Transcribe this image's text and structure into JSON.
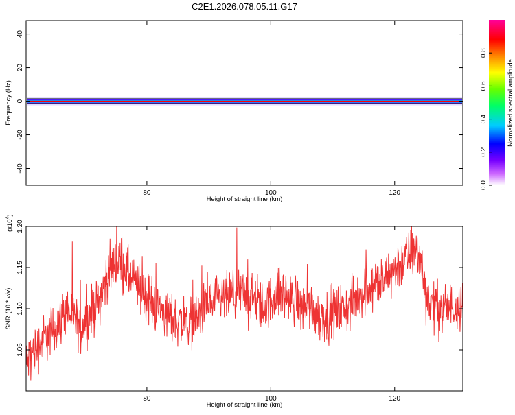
{
  "title": "C2E1.2026.078.05.11.G17",
  "chart_data": [
    {
      "type": "heatmap",
      "xlabel": "Height of straight line (km)",
      "ylabel": "Frequency (Hz)",
      "xlim": [
        60.5,
        131
      ],
      "ylim": [
        -50,
        48
      ],
      "xticks": [
        80,
        100,
        120
      ],
      "yticks": [
        40,
        20,
        0,
        -20,
        -40
      ],
      "ytick_labels": [
        "40",
        "20",
        "0",
        "-20",
        "-40"
      ],
      "band_center_hz": 0,
      "grid": false,
      "colorbar": {
        "label": "Normalized spectral amplitude",
        "range": [
          0,
          1
        ],
        "ticks": [
          0.0,
          0.2,
          0.4,
          0.6,
          0.8
        ],
        "tick_labels": [
          "0.0",
          "0.2",
          "0.4",
          "0.6",
          "0.8"
        ],
        "colormap": "rainbow",
        "colors": [
          "#ffffff",
          "#9900ff",
          "#0000ff",
          "#00ccff",
          "#00ff66",
          "#66ff00",
          "#ffff00",
          "#ff6600",
          "#ff0000",
          "#ff0099"
        ]
      }
    },
    {
      "type": "line",
      "xlabel": "Height of straight line (km)",
      "ylabel": "SNR (10 * v/v)",
      "scale_label": "(x10",
      "scale_exp": "4",
      "scale_close": ")",
      "xlim": [
        60.5,
        131
      ],
      "ylim": [
        1.0,
        1.2
      ],
      "xticks": [
        80,
        100,
        120
      ],
      "yticks": [
        1.05,
        1.1,
        1.15,
        1.2
      ],
      "ytick_labels": [
        "1.05",
        "1.10",
        "1.15",
        "1.20"
      ],
      "color": "#ee3333",
      "grid": false,
      "envelope": {
        "x": [
          60.5,
          61,
          63,
          64,
          65,
          66,
          67,
          68,
          69,
          70,
          71,
          72,
          73,
          74,
          74.8,
          75.6,
          76.5,
          77.5,
          79,
          80.5,
          82,
          83.5,
          85,
          86.5,
          88,
          90,
          92,
          94,
          96,
          97,
          98,
          99,
          100,
          101,
          102,
          103,
          104,
          105,
          106,
          107,
          108,
          109,
          110,
          111,
          112,
          113,
          114,
          115,
          116,
          117,
          118,
          119,
          120,
          121,
          122,
          122.8,
          123.5,
          124.2,
          125,
          126,
          127,
          128,
          129,
          130,
          131
        ],
        "y": [
          1.03,
          1.04,
          1.06,
          1.068,
          1.075,
          1.085,
          1.1,
          1.09,
          1.078,
          1.085,
          1.095,
          1.105,
          1.125,
          1.145,
          1.158,
          1.16,
          1.15,
          1.135,
          1.122,
          1.11,
          1.1,
          1.09,
          1.085,
          1.082,
          1.09,
          1.105,
          1.11,
          1.115,
          1.118,
          1.112,
          1.105,
          1.1,
          1.11,
          1.12,
          1.118,
          1.112,
          1.11,
          1.1,
          1.105,
          1.098,
          1.092,
          1.09,
          1.095,
          1.098,
          1.1,
          1.105,
          1.115,
          1.12,
          1.128,
          1.132,
          1.13,
          1.14,
          1.148,
          1.155,
          1.162,
          1.168,
          1.17,
          1.16,
          1.118,
          1.105,
          1.1,
          1.1,
          1.102,
          1.105,
          1.108
        ]
      },
      "noise_amplitude": 0.015,
      "samples": 1400
    }
  ]
}
